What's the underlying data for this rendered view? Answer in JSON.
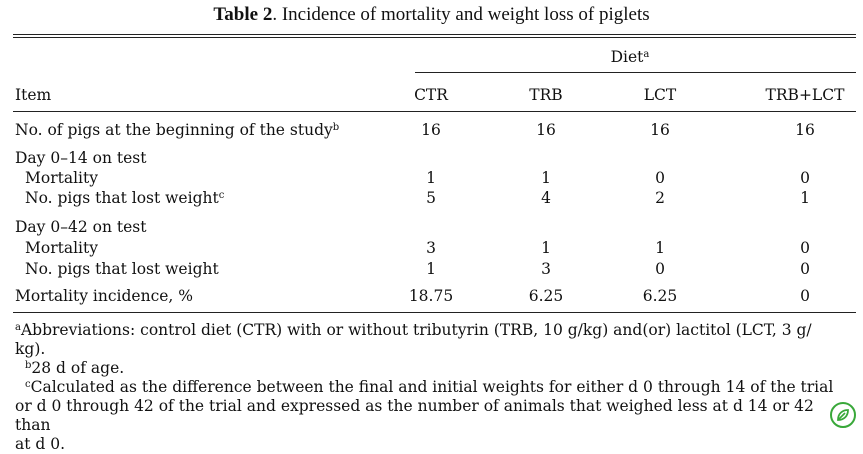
{
  "title": {
    "label": "Table 2",
    "text": ". Incidence of mortality and weight loss of piglets"
  },
  "header": {
    "diet": "Diet",
    "diet_sup": "a",
    "item": "Item",
    "columns": [
      "CTR",
      "TRB",
      "LCT",
      "TRB+LCT"
    ]
  },
  "rows": [
    {
      "label": "No. of pigs at the beginning of the study",
      "sup": "b",
      "values": [
        "16",
        "16",
        "16",
        "16"
      ]
    },
    {
      "label": "Day 0–14 on test"
    },
    {
      "label": "Mortality",
      "values": [
        "1",
        "1",
        "0",
        "0"
      ]
    },
    {
      "label": "No. pigs that lost weight",
      "sup": "c",
      "values": [
        "5",
        "4",
        "2",
        "1"
      ]
    },
    {
      "label": "Day 0–42 on test"
    },
    {
      "label": "Mortality",
      "values": [
        "3",
        "1",
        "1",
        "0"
      ]
    },
    {
      "label": "No. pigs that lost weight",
      "values": [
        "1",
        "3",
        "0",
        "0"
      ]
    },
    {
      "label": "Mortality incidence, %",
      "values": [
        "18.75",
        "6.25",
        "6.25",
        "0"
      ]
    }
  ],
  "footnotes": [
    {
      "mark": "a",
      "line1": "Abbreviations: control diet (CTR) with or without tributyrin (TRB, 10 g/kg) and(or) lactitol (LCT, 3 g/",
      "line2": "kg)."
    },
    {
      "mark": "b",
      "line1": "28 d of age."
    },
    {
      "mark": "c",
      "line1": "Calculated as the difference between the final and initial weights for either d 0 through 14 of the trial",
      "line2": "or d 0 through 42 of the trial and expressed as the number of animals that weighed less at d 14 or 42 than",
      "line3": "at d 0."
    }
  ]
}
